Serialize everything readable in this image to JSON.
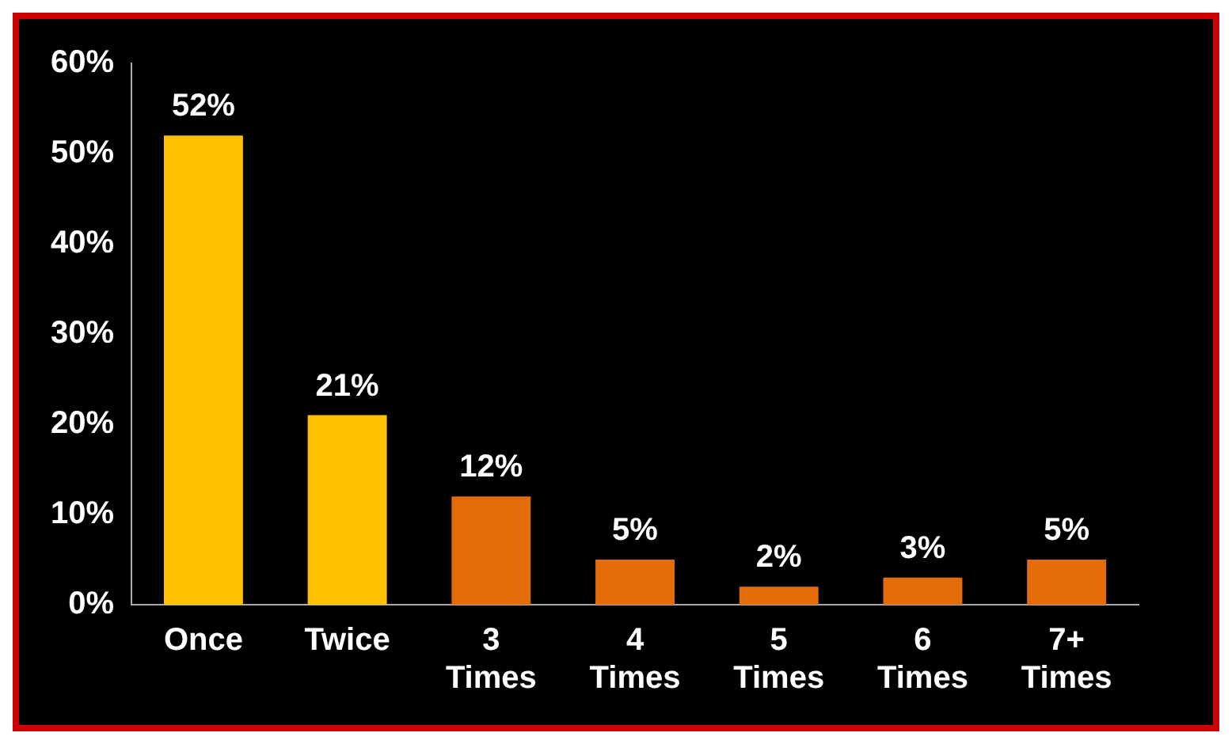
{
  "chart_data": {
    "type": "bar",
    "categories": [
      "Once",
      "Twice",
      "3 Times",
      "4 Times",
      "5 Times",
      "6 Times",
      "7+ Times"
    ],
    "values": [
      52,
      21,
      12,
      5,
      2,
      3,
      5
    ],
    "colors": [
      "#ffc000",
      "#ffc000",
      "#e36c09",
      "#e36c09",
      "#e36c09",
      "#e36c09",
      "#e36c09"
    ],
    "value_labels": [
      "52%",
      "21%",
      "12%",
      "5%",
      "2%",
      "3%",
      "5%"
    ],
    "ylim": [
      0,
      60
    ],
    "yticks": [
      {
        "value": 0,
        "label": "0%"
      },
      {
        "value": 10,
        "label": "10%"
      },
      {
        "value": 20,
        "label": "20%"
      },
      {
        "value": 30,
        "label": "30%"
      },
      {
        "value": 40,
        "label": "40%"
      },
      {
        "value": 50,
        "label": "50%"
      },
      {
        "value": 60,
        "label": "60%"
      }
    ],
    "grid": false,
    "legend": false
  }
}
